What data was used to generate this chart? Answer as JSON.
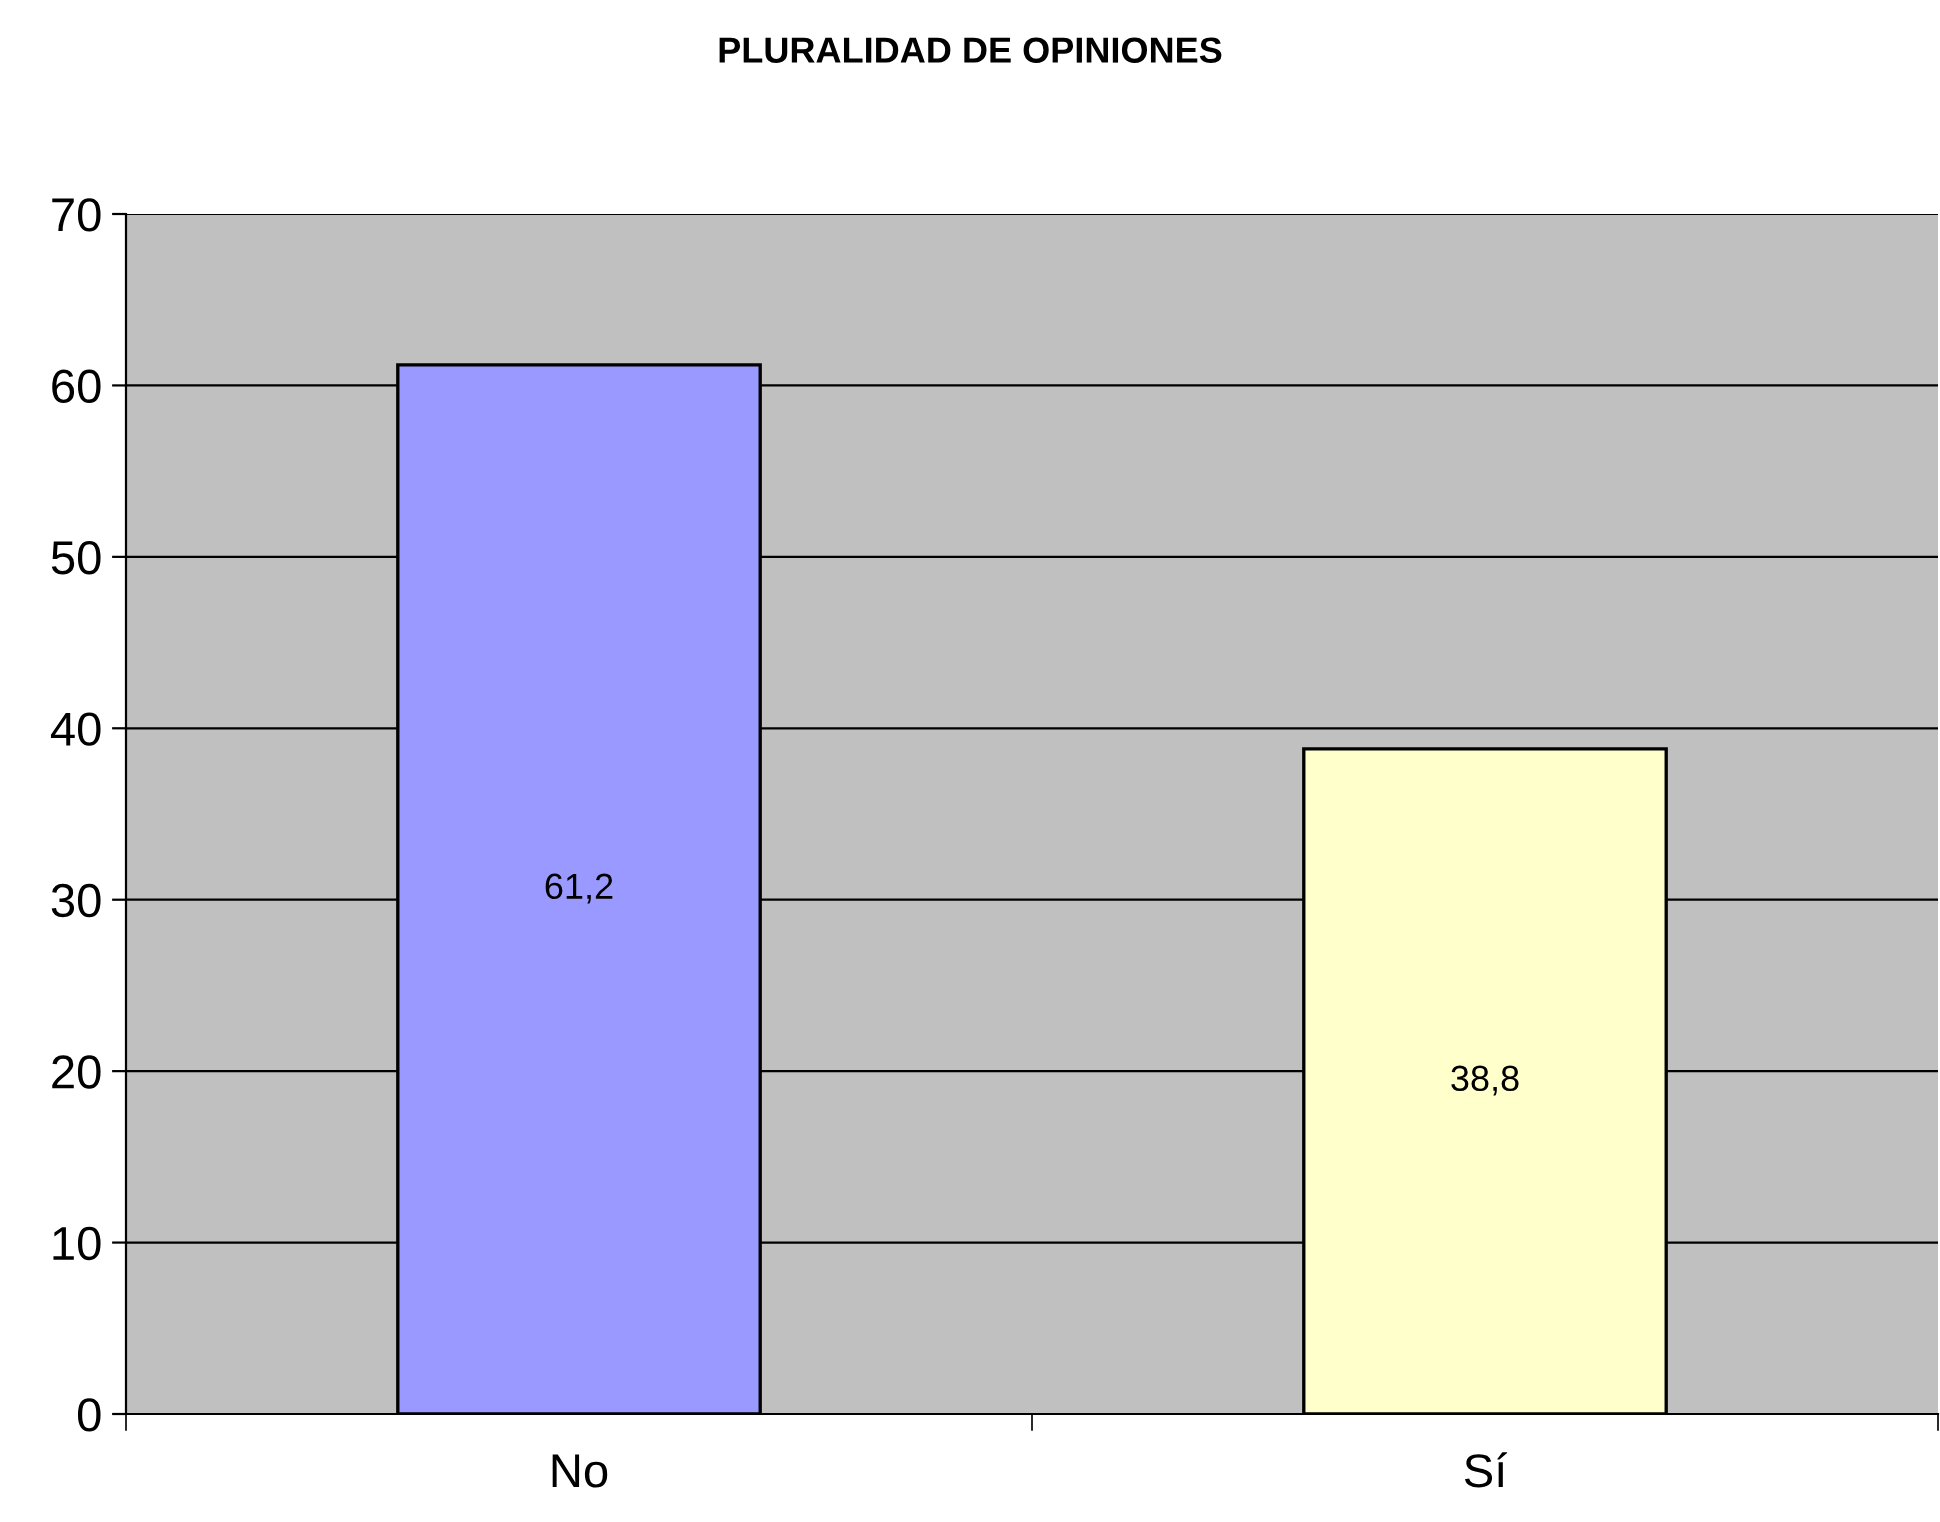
{
  "chart_data": {
    "type": "bar",
    "title": "PLURALIDAD DE OPINIONES",
    "categories": [
      "No",
      "Sí"
    ],
    "values": [
      61.2,
      38.8
    ],
    "colors": [
      "#9999ff",
      "#ffffcc"
    ],
    "value_labels": [
      "61,2",
      "38,8"
    ],
    "ylim": [
      0,
      70
    ],
    "yticks": [
      0,
      10,
      20,
      30,
      40,
      50,
      60,
      70
    ],
    "grid": "y",
    "legend": false
  }
}
